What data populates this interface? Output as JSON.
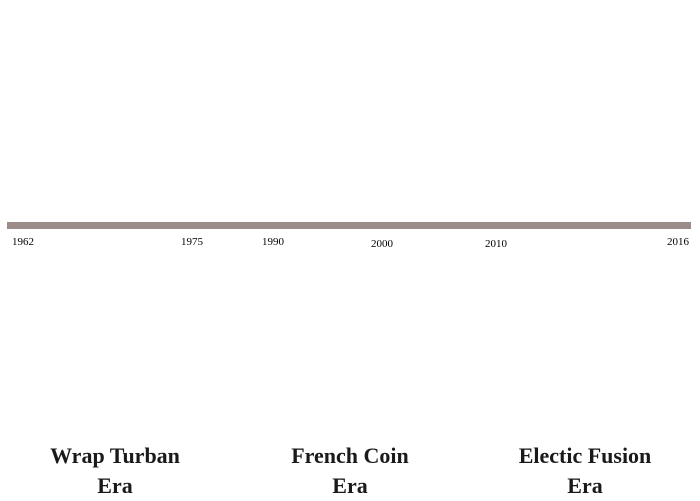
{
  "timeline": {
    "bar_color": "#9b8c8a",
    "years": [
      "1962",
      "1975",
      "1990",
      "2000",
      "2010",
      "2016"
    ]
  },
  "eras": [
    {
      "line1": "Wrap Turban",
      "line2": "Era"
    },
    {
      "line1": "French Coin",
      "line2": "Era"
    },
    {
      "line1": "Electic Fusion",
      "line2": "Era"
    }
  ]
}
